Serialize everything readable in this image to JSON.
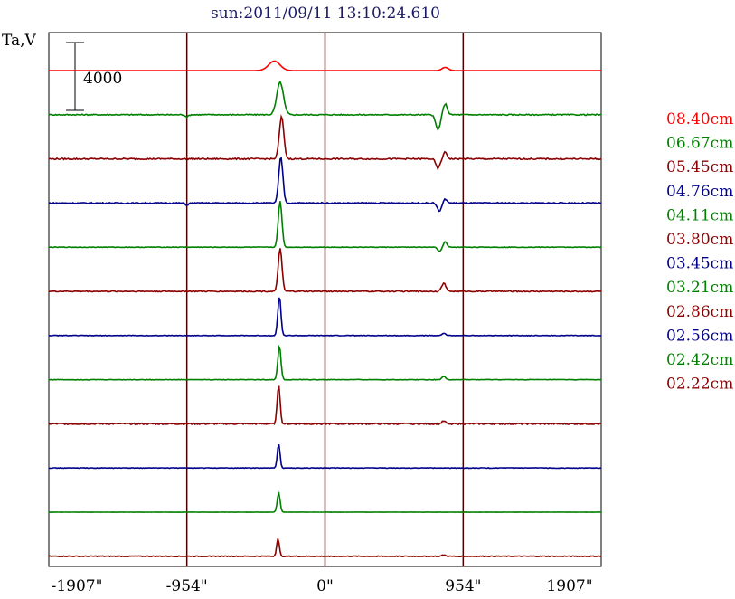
{
  "chart_data": {
    "type": "line",
    "title": "sun:2011/09/11 13:10:24.610",
    "ylabel": "Ta,V",
    "scale_bar_label": "4000",
    "scale_bar_value": 4000,
    "x_ticks": [
      {
        "value": -1907,
        "label": "-1907\""
      },
      {
        "value": -954,
        "label": "-954\""
      },
      {
        "value": 0,
        "label": "0\""
      },
      {
        "value": 954,
        "label": "954\""
      },
      {
        "value": 1907,
        "label": "1907\""
      }
    ],
    "xlim": [
      -1907,
      1907
    ],
    "vertical_gridlines": [
      -954,
      0,
      954
    ],
    "legend_position": "right",
    "series": [
      {
        "name": "08.40cm",
        "color": "#ff0000",
        "peaks": [
          {
            "x": -350,
            "amp": 0.35,
            "w": 55
          },
          {
            "x": 830,
            "amp": 0.12,
            "w": 30
          }
        ],
        "noise": 0.0
      },
      {
        "name": "06.67cm",
        "color": "#008000",
        "peaks": [
          {
            "x": -310,
            "amp": 1.2,
            "w": 32
          },
          {
            "x": 780,
            "amp": -0.55,
            "w": 22
          },
          {
            "x": 830,
            "amp": 0.4,
            "w": 20
          },
          {
            "x": -954,
            "amp": -0.08,
            "w": 15
          }
        ],
        "noise": 0.04
      },
      {
        "name": "05.45cm",
        "color": "#8b0000",
        "peaks": [
          {
            "x": -300,
            "amp": 1.55,
            "w": 22
          },
          {
            "x": 780,
            "amp": -0.35,
            "w": 20
          },
          {
            "x": 830,
            "amp": 0.25,
            "w": 18
          }
        ],
        "noise": 0.05
      },
      {
        "name": "04.76cm",
        "color": "#00008b",
        "peaks": [
          {
            "x": -305,
            "amp": 1.7,
            "w": 20
          },
          {
            "x": 790,
            "amp": -0.3,
            "w": 20
          },
          {
            "x": 830,
            "amp": 0.15,
            "w": 18
          },
          {
            "x": -954,
            "amp": -0.08,
            "w": 15
          }
        ],
        "noise": 0.04
      },
      {
        "name": "04.11cm",
        "color": "#008000",
        "peaks": [
          {
            "x": -310,
            "amp": 1.7,
            "w": 18
          },
          {
            "x": 790,
            "amp": -0.15,
            "w": 18
          },
          {
            "x": 830,
            "amp": 0.2,
            "w": 16
          }
        ],
        "noise": 0.02
      },
      {
        "name": "03.80cm",
        "color": "#8b0000",
        "peaks": [
          {
            "x": -310,
            "amp": 1.6,
            "w": 18
          },
          {
            "x": 820,
            "amp": 0.3,
            "w": 20
          }
        ],
        "noise": 0.04
      },
      {
        "name": "03.45cm",
        "color": "#00008b",
        "peaks": [
          {
            "x": -315,
            "amp": 1.45,
            "w": 15
          },
          {
            "x": 820,
            "amp": 0.08,
            "w": 18
          }
        ],
        "noise": 0.02
      },
      {
        "name": "03.21cm",
        "color": "#008000",
        "peaks": [
          {
            "x": -315,
            "amp": 1.25,
            "w": 15
          },
          {
            "x": 820,
            "amp": 0.12,
            "w": 18
          }
        ],
        "noise": 0.02
      },
      {
        "name": "02.86cm",
        "color": "#8b0000",
        "peaks": [
          {
            "x": -320,
            "amp": 1.45,
            "w": 14
          },
          {
            "x": 820,
            "amp": 0.1,
            "w": 18
          }
        ],
        "noise": 0.05
      },
      {
        "name": "02.56cm",
        "color": "#00008b",
        "peaks": [
          {
            "x": -320,
            "amp": 0.9,
            "w": 13
          }
        ],
        "noise": 0.02
      },
      {
        "name": "02.42cm",
        "color": "#008000",
        "peaks": [
          {
            "x": -320,
            "amp": 0.7,
            "w": 14
          }
        ],
        "noise": 0.01
      },
      {
        "name": "02.22cm",
        "color": "#8b0000",
        "peaks": [
          {
            "x": -325,
            "amp": 0.65,
            "w": 13
          },
          {
            "x": 820,
            "amp": 0.05,
            "w": 18
          }
        ],
        "noise": 0.03
      }
    ]
  }
}
